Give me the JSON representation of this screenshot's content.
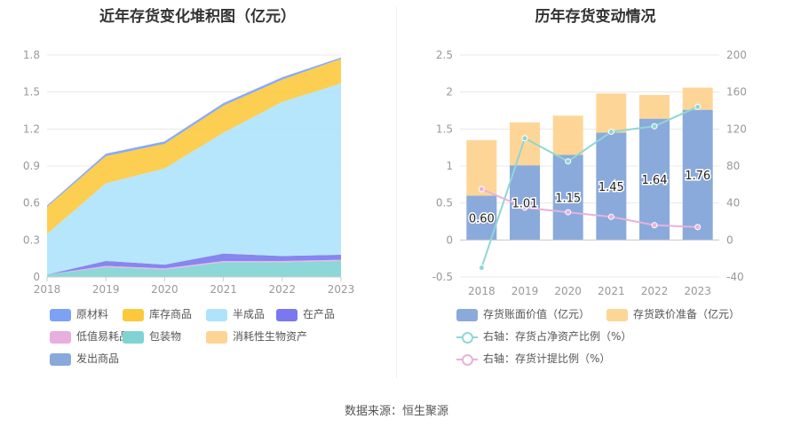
{
  "source_text": "数据来源：恒生聚源",
  "chart_data": [
    {
      "type": "area",
      "title": "近年存货变化堆积图（亿元）",
      "categories": [
        "2018",
        "2019",
        "2020",
        "2021",
        "2022",
        "2023"
      ],
      "ylim": [
        0,
        1.8
      ],
      "yticks": [
        "0",
        "0.3",
        "0.6",
        "0.9",
        "1.2",
        "1.5",
        "1.8"
      ],
      "grid": true,
      "legend_position": "bottom",
      "series": [
        {
          "name": "原材料",
          "color": "#7ba2f5",
          "values": [
            0.01,
            0.02,
            0.02,
            0.02,
            0.02,
            0.01
          ]
        },
        {
          "name": "库存商品",
          "color": "#fcc93e",
          "values": [
            0.22,
            0.22,
            0.2,
            0.22,
            0.18,
            0.2
          ]
        },
        {
          "name": "半成品",
          "color": "#aee3fb",
          "values": [
            0.33,
            0.63,
            0.78,
            0.98,
            1.25,
            1.39
          ]
        },
        {
          "name": "在产品",
          "color": "#7a78ee",
          "values": [
            0.0,
            0.04,
            0.03,
            0.06,
            0.04,
            0.04
          ]
        },
        {
          "name": "低值易耗品",
          "color": "#e8aee0",
          "values": [
            0.0,
            0.01,
            0.01,
            0.01,
            0.01,
            0.01
          ]
        },
        {
          "name": "包装物",
          "color": "#7fd3d3",
          "values": [
            0.02,
            0.08,
            0.06,
            0.12,
            0.12,
            0.13
          ]
        },
        {
          "name": "消耗性生物资产",
          "color": "#fcd493",
          "values": [
            0,
            0,
            0,
            0,
            0,
            0
          ]
        },
        {
          "name": "发出商品",
          "color": "#8aa9db",
          "values": [
            0,
            0,
            0,
            0,
            0,
            0
          ]
        }
      ]
    },
    {
      "type": "bar",
      "title": "历年存货变动情况",
      "categories": [
        "2018",
        "2019",
        "2020",
        "2021",
        "2022",
        "2023"
      ],
      "ylim_left": [
        -0.5,
        2.5
      ],
      "yticks_left": [
        "-0.5",
        "0",
        "0.5",
        "1",
        "1.5",
        "2",
        "2.5"
      ],
      "ylim_right": [
        -40,
        200
      ],
      "yticks_right": [
        "-40",
        "0",
        "40",
        "80",
        "120",
        "160",
        "200"
      ],
      "grid": true,
      "legend_position": "bottom",
      "series": [
        {
          "name": "存货账面价值（亿元）",
          "kind": "bar",
          "axis": "left",
          "color": "#8aaadb",
          "values": [
            0.6,
            1.01,
            1.15,
            1.45,
            1.64,
            1.76
          ],
          "labels": [
            "0.60",
            "1.01",
            "1.15",
            "1.45",
            "1.64",
            "1.76"
          ]
        },
        {
          "name": "存货跌价准备（亿元）",
          "kind": "bar",
          "axis": "left",
          "color": "#fdd697",
          "values": [
            0.75,
            0.58,
            0.53,
            0.53,
            0.32,
            0.3
          ]
        },
        {
          "name": "右轴：存货占净资产比例（%）",
          "kind": "line",
          "axis": "right",
          "color": "#8fd7d5",
          "values": [
            -30,
            110,
            85,
            117,
            123,
            144
          ]
        },
        {
          "name": "右轴：存货计提比例（%）",
          "kind": "line",
          "axis": "right",
          "color": "#e7b2db",
          "values": [
            55,
            35,
            30,
            25,
            16,
            14
          ]
        }
      ]
    }
  ]
}
